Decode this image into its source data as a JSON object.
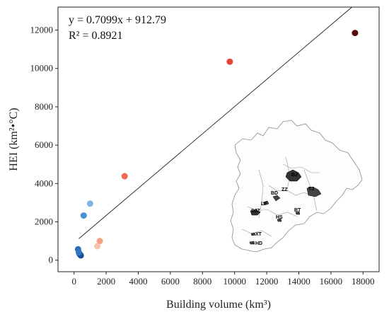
{
  "chart_data": {
    "type": "scatter",
    "xlabel": "Building volume (km³)",
    "ylabel": "HEI (km²•°C)",
    "xlim": [
      -1000,
      19000
    ],
    "ylim": [
      -600,
      13200
    ],
    "xticks": [
      0,
      2000,
      4000,
      6000,
      8000,
      10000,
      12000,
      14000,
      16000,
      18000
    ],
    "yticks": [
      0,
      2000,
      4000,
      6000,
      8000,
      10000,
      12000
    ],
    "grid": false,
    "legend": "none",
    "points": [
      {
        "x": 17500,
        "y": 11850,
        "color": "#5b0a0a"
      },
      {
        "x": 9700,
        "y": 10350,
        "color": "#e8423a"
      },
      {
        "x": 3150,
        "y": 4380,
        "color": "#ef6b4f"
      },
      {
        "x": 1600,
        "y": 1000,
        "color": "#f3a184"
      },
      {
        "x": 1450,
        "y": 730,
        "color": "#f7c2b0"
      },
      {
        "x": 1000,
        "y": 2950,
        "color": "#7fb5e0"
      },
      {
        "x": 600,
        "y": 2330,
        "color": "#4a8fcf"
      },
      {
        "x": 250,
        "y": 570,
        "color": "#2a6fb8"
      },
      {
        "x": 350,
        "y": 320,
        "color": "#1e5fa8"
      },
      {
        "x": 420,
        "y": 250,
        "color": "#174f96"
      },
      {
        "x": 300,
        "y": 400,
        "color": "#2f79c2"
      }
    ],
    "trendline": {
      "slope": 0.7099,
      "intercept": 912.79,
      "x_start": 300,
      "x_end": 18800,
      "color": "#222222"
    },
    "equation_text": "y = 0.7099x + 912.79",
    "r2_text": "R² = 0.8921",
    "inset_map": {
      "labels": [
        {
          "text": "BJ",
          "color": "#c0262d"
        },
        {
          "text": "TJ",
          "color": "#c0262d"
        },
        {
          "text": "BD",
          "color": "#e08866"
        },
        {
          "text": "ZZ",
          "color": "#5a9bd5"
        },
        {
          "text": "LF",
          "color": "#1f4e9c"
        },
        {
          "text": "SJZ",
          "color": "#e07a5f"
        },
        {
          "text": "HS",
          "color": "#5a9bd5"
        },
        {
          "text": "BT",
          "color": "#1f4e9c"
        },
        {
          "text": "XT",
          "color": "#9ec6e8"
        },
        {
          "text": "HD",
          "color": "#e8a08a"
        }
      ]
    }
  }
}
